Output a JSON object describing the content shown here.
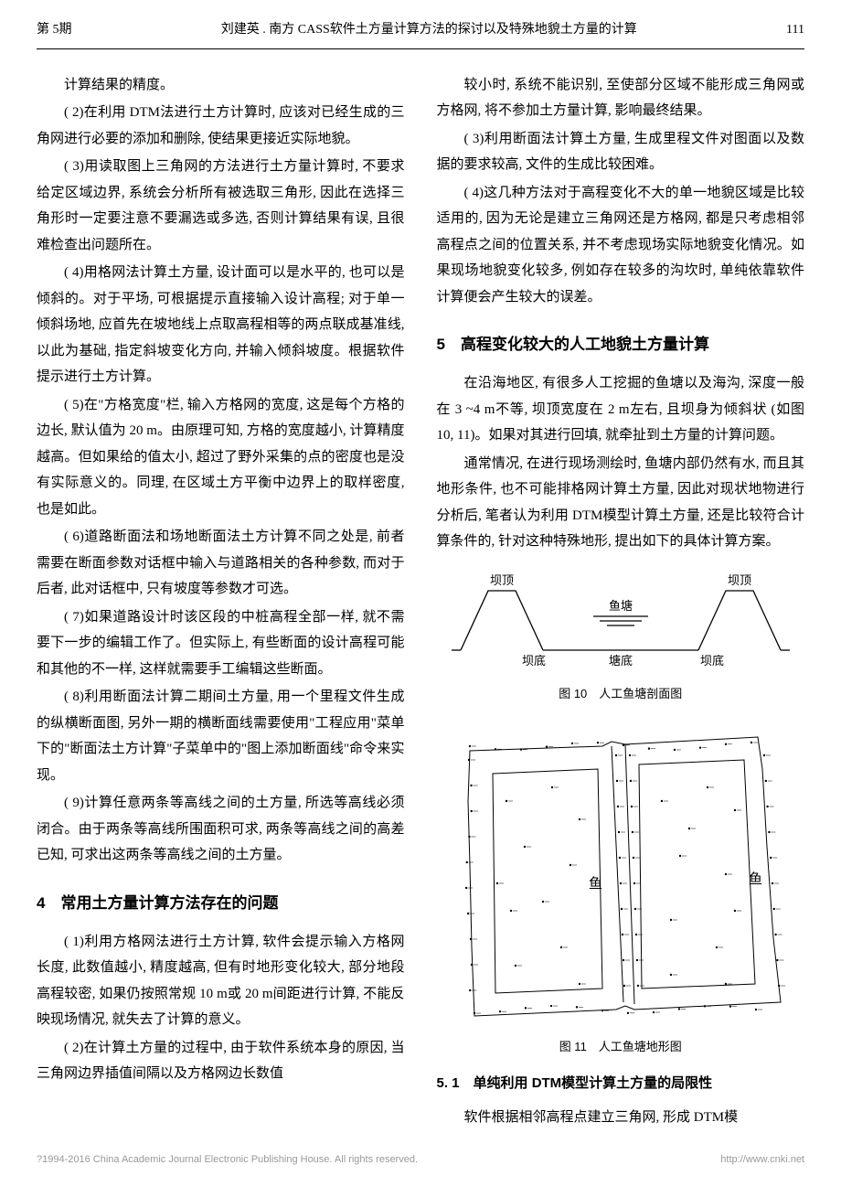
{
  "header": {
    "issue": "第 5期",
    "title": "刘建英 . 南方 CASS软件土方量计算方法的探讨以及特殊地貌土方量的计算",
    "page": "111"
  },
  "leftCol": {
    "p0": "计算结果的精度。",
    "p1": "( 2)在利用 DTM法进行土方计算时, 应该对已经生成的三角网进行必要的添加和删除, 使结果更接近实际地貌。",
    "p2": "( 3)用读取图上三角网的方法进行土方量计算时, 不要求给定区域边界, 系统会分析所有被选取三角形, 因此在选择三角形时一定要注意不要漏选或多选, 否则计算结果有误, 且很难检查出问题所在。",
    "p3": "( 4)用格网法计算土方量, 设计面可以是水平的, 也可以是倾斜的。对于平场, 可根据提示直接输入设计高程; 对于单一倾斜场地, 应首先在坡地线上点取高程相等的两点联成基准线, 以此为基础, 指定斜坡变化方向, 并输入倾斜坡度。根据软件提示进行土方计算。",
    "p4": "( 5)在\"方格宽度\"栏, 输入方格网的宽度, 这是每个方格的边长, 默认值为 20 m。由原理可知, 方格的宽度越小, 计算精度越高。但如果给的值太小, 超过了野外采集的点的密度也是没有实际意义的。同理, 在区域土方平衡中边界上的取样密度, 也是如此。",
    "p5": "( 6)道路断面法和场地断面法土方计算不同之处是, 前者需要在断面参数对话框中输入与道路相关的各种参数, 而对于后者, 此对话框中, 只有坡度等参数才可选。",
    "p6": "( 7)如果道路设计时该区段的中桩高程全部一样, 就不需要下一步的编辑工作了。但实际上, 有些断面的设计高程可能和其他的不一样, 这样就需要手工编辑这些断面。",
    "p7": "( 8)利用断面法计算二期间土方量, 用一个里程文件生成的纵横断面图, 另外一期的横断面线需要使用\"工程应用\"菜单下的\"断面法土方计算\"子菜单中的\"图上添加断面线\"命令来实现。",
    "p8": "( 9)计算任意两条等高线之间的土方量, 所选等高线必须闭合。由于两条等高线所围面积可求, 两条等高线之间的高差已知, 可求出这两条等高线之间的土方量。",
    "s4_title": "4　常用土方量计算方法存在的问题",
    "p9": "( 1)利用方格网法进行土方计算, 软件会提示输入方格网长度, 此数值越小, 精度越高, 但有时地形变化较大, 部分地段高程较密, 如果仍按照常规 10 m或 20 m间距进行计算, 不能反映现场情况, 就失去了计算的意义。",
    "p10": "( 2)在计算土方量的过程中, 由于软件系统本身的原因, 当三角网边界插值间隔以及方格网边长数值"
  },
  "rightCol": {
    "p0": "较小时, 系统不能识别, 至使部分区域不能形成三角网或方格网, 将不参加土方量计算, 影响最终结果。",
    "p1": "( 3)利用断面法计算土方量, 生成里程文件对图面以及数据的要求较高, 文件的生成比较困难。",
    "p2": "( 4)这几种方法对于高程变化不大的单一地貌区域是比较适用的, 因为无论是建立三角网还是方格网, 都是只考虑相邻高程点之间的位置关系, 并不考虑现场实际地貌变化情况。如果现场地貌变化较多, 例如存在较多的沟坎时, 单纯依靠软件计算便会产生较大的误差。",
    "s5_title": "5　高程变化较大的人工地貌土方量计算",
    "p3": "在沿海地区, 有很多人工挖掘的鱼塘以及海沟, 深度一般在 3 ~4 m不等, 坝顶宽度在 2 m左右, 且坝身为倾斜状 (如图 10, 11)。如果对其进行回填, 就牵扯到土方量的计算问题。",
    "p4": "通常情况, 在进行现场测绘时, 鱼塘内部仍然有水, 而且其地形条件, 也不可能排格网计算土方量, 因此对现状地物进行分析后, 笔者认为利用 DTM模型计算土方量, 还是比较符合计算条件的, 针对这种特殊地形, 提出如下的具体计算方案。",
    "fig10_caption": "图 10　人工鱼塘剖面图",
    "fig11_caption": "图 11　人工鱼塘地形图",
    "s51_title": "5. 1　单纯利用 DTM模型计算土方量的局限性",
    "p5": "软件根据相邻高程点建立三角网, 形成 DTM模"
  },
  "fig10": {
    "labels": {
      "damTop": "坝顶",
      "pond": "鱼塘",
      "damBottom": "坝底",
      "pondBottom": "塘底"
    },
    "stroke": "#000",
    "lineWidth": 1.3
  },
  "fig11": {
    "pondLabel": "鱼",
    "stroke": "#000",
    "pointSize": 1.2,
    "lineWidth": 1
  },
  "footer": {
    "left": "?1994-2016 China Academic Journal Electronic Publishing House. All rights reserved.",
    "right": "http://www.cnki.net"
  }
}
